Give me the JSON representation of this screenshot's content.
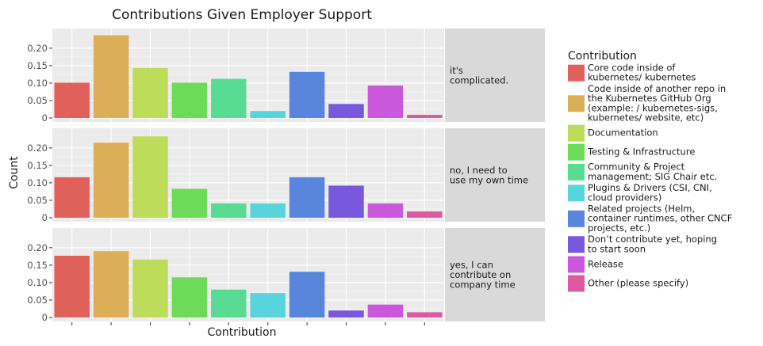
{
  "chart_data": {
    "type": "bar",
    "title": "Contributions Given Employer Support",
    "xlabel": "Contribution",
    "ylabel": "Count",
    "ylim": [
      0,
      0.245
    ],
    "yticks": [
      "0",
      "0.05",
      "0.10",
      "0.15",
      "0.20"
    ],
    "ytick_values": [
      0,
      0.05,
      0.1,
      0.15,
      0.2
    ],
    "legend_title": "Contribution",
    "legend_placement": "right",
    "categories": [
      {
        "lines": [
          "Core code inside of",
          "kubernetes/  kubernetes"
        ],
        "color": "#e0605a"
      },
      {
        "lines": [
          "Code inside of another repo in",
          "the Kubernetes GitHub Org",
          "(example: /  kubernetes-sigs,",
          "kubernetes/  website, etc)"
        ],
        "color": "#dcae58"
      },
      {
        "lines": [
          "Documentation"
        ],
        "color": "#bcdc5a"
      },
      {
        "lines": [
          "Testing & Infrastructure"
        ],
        "color": "#6cdc58"
      },
      {
        "lines": [
          "Community & Project",
          "management; SIG Chair etc."
        ],
        "color": "#58dc93"
      },
      {
        "lines": [
          "Plugins & Drivers (CSI, CNI,",
          "cloud providers)"
        ],
        "color": "#58d5dc"
      },
      {
        "lines": [
          "Related projects (Helm,",
          "container runtimes, other CNCF",
          "projects, etc.)"
        ],
        "color": "#5886dc"
      },
      {
        "lines": [
          "Don’t contribute yet, hoping",
          "to start soon"
        ],
        "color": "#7858dc"
      },
      {
        "lines": [
          "Release"
        ],
        "color": "#c958dc"
      },
      {
        "lines": [
          "Other (please specify)"
        ],
        "color": "#dc5aa0"
      }
    ],
    "panels": [
      {
        "label_lines": [
          "it's",
          "complicated."
        ],
        "values": [
          0.101,
          0.237,
          0.143,
          0.101,
          0.112,
          0.02,
          0.132,
          0.04,
          0.093,
          0.009
        ]
      },
      {
        "label_lines": [
          "no, I need to",
          "use my own time"
        ],
        "values": [
          0.116,
          0.215,
          0.233,
          0.083,
          0.041,
          0.041,
          0.116,
          0.092,
          0.041,
          0.018
        ]
      },
      {
        "label_lines": [
          "yes, I can",
          "contribute on",
          "company time"
        ],
        "values": [
          0.177,
          0.19,
          0.166,
          0.115,
          0.08,
          0.07,
          0.131,
          0.02,
          0.037,
          0.015
        ]
      }
    ]
  }
}
